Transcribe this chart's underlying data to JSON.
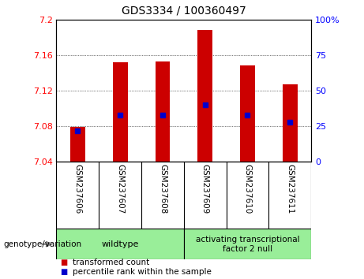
{
  "title": "GDS3334 / 100360497",
  "samples": [
    "GSM237606",
    "GSM237607",
    "GSM237608",
    "GSM237609",
    "GSM237610",
    "GSM237611"
  ],
  "transformed_counts": [
    7.079,
    7.152,
    7.153,
    7.188,
    7.148,
    7.127
  ],
  "percentile_ranks": [
    22,
    33,
    33,
    40,
    33,
    28
  ],
  "y_min": 7.04,
  "y_max": 7.2,
  "y_ticks": [
    7.04,
    7.08,
    7.12,
    7.16,
    7.2
  ],
  "y2_ticks": [
    0,
    25,
    50,
    75,
    100
  ],
  "bar_color": "#cc0000",
  "dot_color": "#0000cc",
  "background_color": "#cccccc",
  "sample_bg": "#d8d8d8",
  "plot_bg": "#ffffff",
  "group_color": "#99ee99",
  "legend_entries": [
    "transformed count",
    "percentile rank within the sample"
  ],
  "genotype_label": "genotype/variation",
  "group1_label": "wildtype",
  "group2_label": "activating transcriptional\nfactor 2 null"
}
